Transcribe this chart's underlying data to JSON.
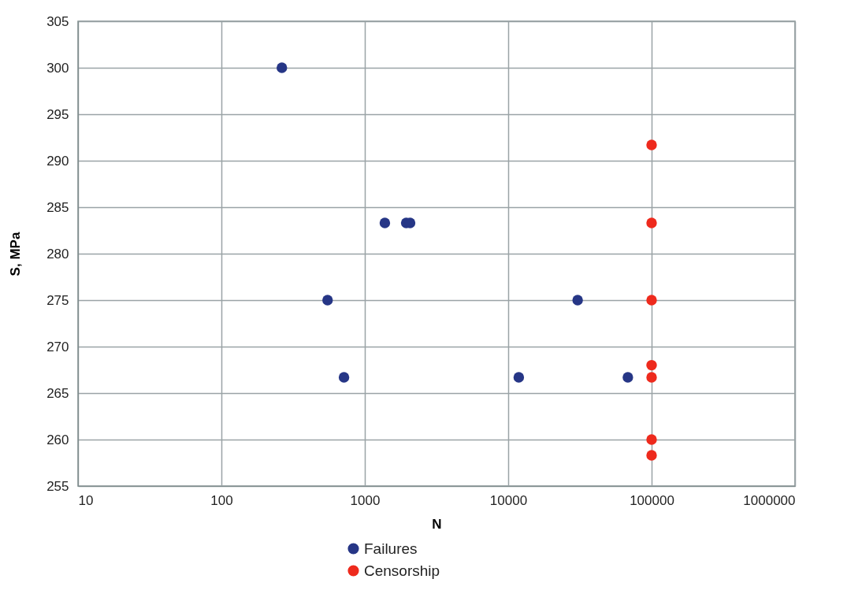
{
  "chart_data": {
    "type": "scatter",
    "xlabel": "N",
    "ylabel": "S, MPa",
    "log": "x",
    "xlim": [
      10,
      1000000
    ],
    "xticks": [
      10,
      100,
      1000,
      10000,
      100000,
      1000000
    ],
    "ylim": [
      255,
      305
    ],
    "yticks": [
      255,
      260,
      265,
      270,
      275,
      280,
      285,
      290,
      295,
      300,
      305
    ],
    "grid": true,
    "legend": "bottom",
    "marker": "circle",
    "series": [
      {
        "name": "Failures",
        "color": "#263686",
        "x": [
          264,
          550,
          716,
          1380,
          1945,
          2070,
          30500,
          11850,
          68300
        ],
        "values": [
          300,
          275,
          266.7,
          283.3,
          283.3,
          283.3,
          275,
          266.7,
          266.7
        ]
      },
      {
        "name": "Censorship",
        "color": "#ee2a1d",
        "x": [
          100000,
          100000,
          100000,
          100000,
          100000,
          100000,
          100000
        ],
        "values": [
          291.7,
          283.3,
          275,
          268,
          266.7,
          260,
          258.3
        ]
      }
    ]
  }
}
